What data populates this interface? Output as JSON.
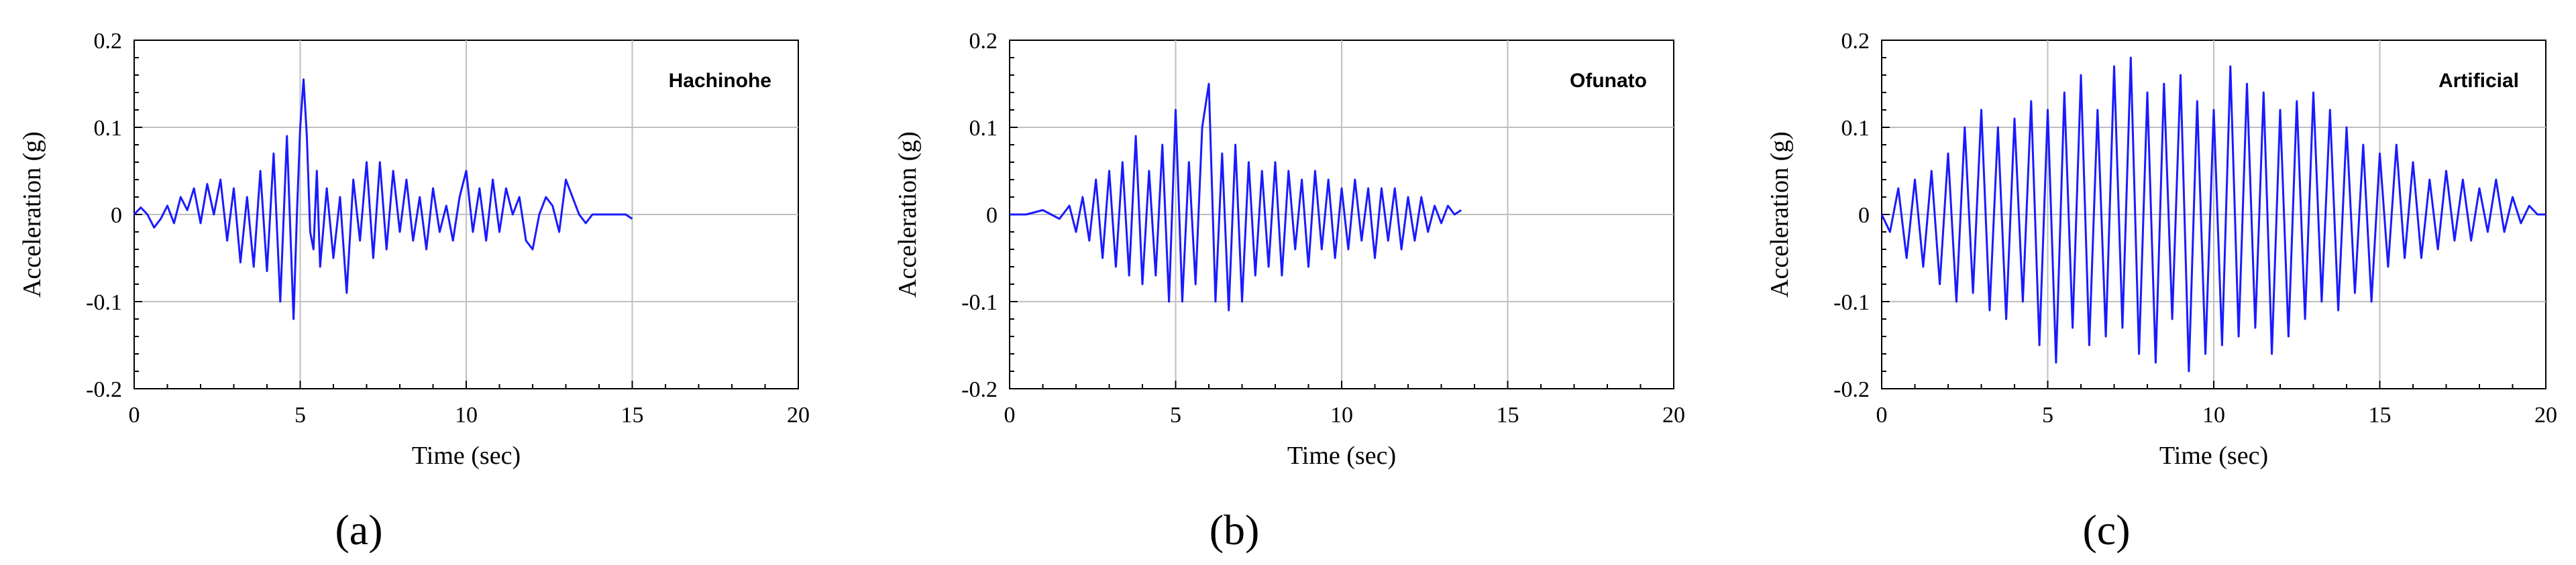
{
  "figure": {
    "panel_labels": [
      "(a)",
      "(b)",
      "(c)"
    ]
  },
  "chart_data": [
    {
      "type": "line",
      "annotation": "Hachinohe",
      "xlabel": "Time (sec)",
      "ylabel": "Acceleration (g)",
      "xlim": [
        0,
        20
      ],
      "ylim": [
        -0.2,
        0.2
      ],
      "x_ticks": [
        "0",
        "5",
        "10",
        "15",
        "20"
      ],
      "y_ticks": [
        "0.2",
        "0.1",
        "0",
        "-0.1",
        "-0.2"
      ],
      "grid": true,
      "line_color": "#1a1aff",
      "series": [
        {
          "x": [
            0,
            0.2,
            0.4,
            0.6,
            0.8,
            1.0,
            1.2,
            1.4,
            1.6,
            1.8,
            2.0,
            2.2,
            2.4,
            2.6,
            2.8,
            3.0,
            3.2,
            3.4,
            3.6,
            3.8,
            4.0,
            4.2,
            4.4,
            4.6,
            4.8,
            4.9,
            5.0,
            5.1,
            5.2,
            5.3,
            5.4,
            5.5,
            5.6,
            5.8,
            6.0,
            6.2,
            6.4,
            6.6,
            6.8,
            7.0,
            7.2,
            7.4,
            7.6,
            7.8,
            8.0,
            8.2,
            8.4,
            8.6,
            8.8,
            9.0,
            9.2,
            9.4,
            9.6,
            9.8,
            10.0,
            10.2,
            10.4,
            10.6,
            10.8,
            11.0,
            11.2,
            11.4,
            11.6,
            11.8,
            12.0,
            12.2,
            12.4,
            12.6,
            12.8,
            13.0,
            13.2,
            13.4,
            13.6,
            13.8,
            14.0,
            14.4,
            14.8,
            15.0
          ],
          "y": [
            0.0,
            0.008,
            0.0,
            -0.015,
            -0.005,
            0.01,
            -0.01,
            0.02,
            0.005,
            0.03,
            -0.01,
            0.035,
            0.0,
            0.04,
            -0.03,
            0.03,
            -0.055,
            0.02,
            -0.06,
            0.05,
            -0.065,
            0.07,
            -0.1,
            0.09,
            -0.12,
            0.0,
            0.1,
            0.155,
            0.09,
            -0.02,
            -0.04,
            0.05,
            -0.06,
            0.03,
            -0.05,
            0.02,
            -0.09,
            0.04,
            -0.03,
            0.06,
            -0.05,
            0.06,
            -0.04,
            0.05,
            -0.02,
            0.04,
            -0.03,
            0.02,
            -0.04,
            0.03,
            -0.02,
            0.01,
            -0.03,
            0.02,
            0.05,
            -0.02,
            0.03,
            -0.03,
            0.04,
            -0.02,
            0.03,
            0.0,
            0.02,
            -0.03,
            -0.04,
            0.0,
            0.02,
            0.01,
            -0.02,
            0.04,
            0.02,
            0.0,
            -0.01,
            0.0,
            0.0,
            0.0,
            0.0,
            -0.005
          ]
        }
      ]
    },
    {
      "type": "line",
      "annotation": "Ofunato",
      "xlabel": "Time (sec)",
      "ylabel": "Acceleration (g)",
      "xlim": [
        0,
        20
      ],
      "ylim": [
        -0.2,
        0.2
      ],
      "x_ticks": [
        "0",
        "5",
        "10",
        "15",
        "20"
      ],
      "y_ticks": [
        "0.2",
        "0.1",
        "0",
        "-0.1",
        "-0.2"
      ],
      "grid": true,
      "line_color": "#1a1aff",
      "series": [
        {
          "x": [
            0,
            0.5,
            1.0,
            1.5,
            1.8,
            2.0,
            2.2,
            2.4,
            2.6,
            2.8,
            3.0,
            3.2,
            3.4,
            3.6,
            3.8,
            4.0,
            4.2,
            4.4,
            4.6,
            4.8,
            5.0,
            5.2,
            5.4,
            5.6,
            5.8,
            6.0,
            6.2,
            6.4,
            6.6,
            6.8,
            7.0,
            7.2,
            7.4,
            7.6,
            7.8,
            8.0,
            8.2,
            8.4,
            8.6,
            8.8,
            9.0,
            9.2,
            9.4,
            9.6,
            9.8,
            10.0,
            10.2,
            10.4,
            10.6,
            10.8,
            11.0,
            11.2,
            11.4,
            11.6,
            11.8,
            12.0,
            12.2,
            12.4,
            12.6,
            12.8,
            13.0,
            13.2,
            13.4,
            13.6
          ],
          "y": [
            0.0,
            0.0,
            0.005,
            -0.005,
            0.01,
            -0.02,
            0.02,
            -0.03,
            0.04,
            -0.05,
            0.05,
            -0.06,
            0.06,
            -0.07,
            0.09,
            -0.08,
            0.05,
            -0.07,
            0.08,
            -0.1,
            0.12,
            -0.1,
            0.06,
            -0.08,
            0.1,
            0.15,
            -0.1,
            0.07,
            -0.11,
            0.08,
            -0.1,
            0.06,
            -0.07,
            0.05,
            -0.06,
            0.06,
            -0.07,
            0.05,
            -0.04,
            0.04,
            -0.06,
            0.05,
            -0.04,
            0.04,
            -0.05,
            0.03,
            -0.04,
            0.04,
            -0.03,
            0.03,
            -0.05,
            0.03,
            -0.03,
            0.03,
            -0.04,
            0.02,
            -0.03,
            0.02,
            -0.02,
            0.01,
            -0.01,
            0.01,
            0.0,
            0.005
          ]
        }
      ]
    },
    {
      "type": "line",
      "annotation": "Artificial",
      "xlabel": "Time (sec)",
      "ylabel": "Acceleration (g)",
      "xlim": [
        0,
        20
      ],
      "ylim": [
        -0.2,
        0.2
      ],
      "x_ticks": [
        "0",
        "5",
        "10",
        "15",
        "20"
      ],
      "y_ticks": [
        "0.2",
        "0.1",
        "0",
        "-0.1",
        "-0.2"
      ],
      "grid": true,
      "line_color": "#1a1aff",
      "series": [
        {
          "x": [
            0,
            0.25,
            0.5,
            0.75,
            1.0,
            1.25,
            1.5,
            1.75,
            2.0,
            2.25,
            2.5,
            2.75,
            3.0,
            3.25,
            3.5,
            3.75,
            4.0,
            4.25,
            4.5,
            4.75,
            5.0,
            5.25,
            5.5,
            5.75,
            6.0,
            6.25,
            6.5,
            6.75,
            7.0,
            7.25,
            7.5,
            7.75,
            8.0,
            8.25,
            8.5,
            8.75,
            9.0,
            9.25,
            9.5,
            9.75,
            10.0,
            10.25,
            10.5,
            10.75,
            11.0,
            11.25,
            11.5,
            11.75,
            12.0,
            12.25,
            12.5,
            12.75,
            13.0,
            13.25,
            13.5,
            13.75,
            14.0,
            14.25,
            14.5,
            14.75,
            15.0,
            15.25,
            15.5,
            15.75,
            16.0,
            16.25,
            16.5,
            16.75,
            17.0,
            17.25,
            17.5,
            17.75,
            18.0,
            18.25,
            18.5,
            18.75,
            19.0,
            19.25,
            19.5,
            19.75,
            20.0
          ],
          "y": [
            0.0,
            -0.02,
            0.03,
            -0.05,
            0.04,
            -0.06,
            0.05,
            -0.08,
            0.07,
            -0.1,
            0.1,
            -0.09,
            0.12,
            -0.11,
            0.1,
            -0.12,
            0.11,
            -0.1,
            0.13,
            -0.15,
            0.12,
            -0.17,
            0.14,
            -0.13,
            0.16,
            -0.15,
            0.12,
            -0.14,
            0.17,
            -0.13,
            0.18,
            -0.16,
            0.14,
            -0.17,
            0.15,
            -0.12,
            0.16,
            -0.18,
            0.13,
            -0.16,
            0.12,
            -0.15,
            0.17,
            -0.14,
            0.15,
            -0.13,
            0.14,
            -0.16,
            0.12,
            -0.14,
            0.13,
            -0.12,
            0.14,
            -0.1,
            0.12,
            -0.11,
            0.1,
            -0.09,
            0.08,
            -0.1,
            0.07,
            -0.06,
            0.08,
            -0.05,
            0.06,
            -0.05,
            0.04,
            -0.04,
            0.05,
            -0.03,
            0.04,
            -0.03,
            0.03,
            -0.02,
            0.04,
            -0.02,
            0.02,
            -0.01,
            0.01,
            0.0,
            0.0
          ]
        }
      ]
    }
  ]
}
